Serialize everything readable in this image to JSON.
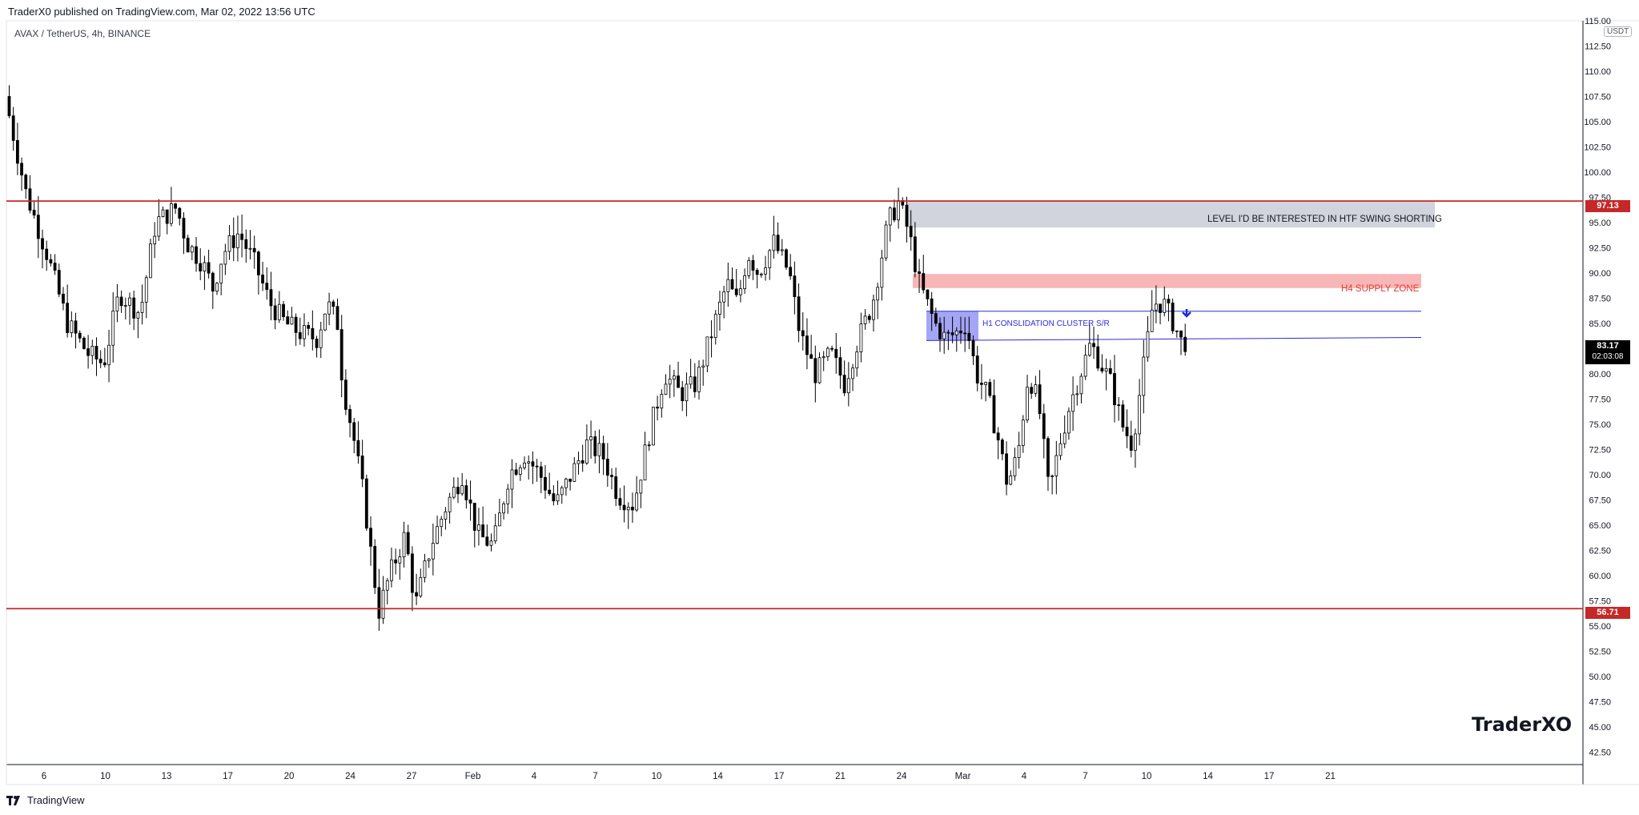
{
  "header": {
    "published": "TraderX0 published on TradingView.com, Mar 02, 2022 13:56 UTC"
  },
  "symbol": {
    "line": "AVAX / TetherUS, 4h, BINANCE"
  },
  "watermark": "TraderXO",
  "footer": {
    "brand": "TradingView"
  },
  "axis_currency": "USDT",
  "price_tags": {
    "resistance": "97.13",
    "support": "56.71",
    "last": "83.17",
    "countdown": "02:03:08"
  },
  "annotations": {
    "htf": "LEVEL I'D BE INTERESTED IN HTF SWING SHORTING",
    "supply": "H4 SUPPLY ZONE",
    "h1": "H1 CONSLIDATION CLUSTER S/R"
  },
  "colors": {
    "line": "#c62828",
    "supply": "#f8a9a9",
    "htf": "#d1d4dc",
    "cluster": "#8e8ff2",
    "arrow": "#1e2bd8"
  },
  "chart_data": {
    "type": "candlestick",
    "title": "AVAX / TetherUS, 4h, BINANCE",
    "ylim": [
      41.25,
      115.0
    ],
    "y_ticks": [
      115.0,
      112.5,
      110.0,
      107.5,
      105.0,
      102.5,
      100.0,
      97.5,
      95.0,
      92.5,
      90.0,
      87.5,
      85.0,
      82.5,
      80.0,
      77.5,
      75.0,
      72.5,
      70.0,
      67.5,
      65.0,
      62.5,
      60.0,
      57.5,
      55.0,
      52.5,
      50.0,
      47.5,
      45.0,
      42.5
    ],
    "x_labels": [
      "6",
      "10",
      "13",
      "17",
      "20",
      "24",
      "27",
      "Feb",
      "4",
      "7",
      "10",
      "14",
      "17",
      "21",
      "24",
      "Mar",
      "4",
      "7",
      "10",
      "14",
      "17",
      "21"
    ],
    "horizontal_levels": [
      97.13,
      56.71
    ],
    "zones": {
      "htf_short": [
        94.5,
        97.13
      ],
      "h4_supply": [
        88.5,
        89.9
      ],
      "h1_cluster": [
        83.3,
        86.2
      ]
    },
    "last_price": 83.17,
    "price_path": [
      [
        0,
        107.5
      ],
      [
        20,
        98
      ],
      [
        40,
        92
      ],
      [
        60,
        85
      ],
      [
        80,
        82
      ],
      [
        95,
        81
      ],
      [
        110,
        88
      ],
      [
        130,
        86
      ],
      [
        145,
        95
      ],
      [
        165,
        96.5
      ],
      [
        175,
        93
      ],
      [
        190,
        91
      ],
      [
        200,
        88.5
      ],
      [
        210,
        92
      ],
      [
        225,
        94
      ],
      [
        240,
        91
      ],
      [
        255,
        87
      ],
      [
        270,
        85
      ],
      [
        285,
        84
      ],
      [
        300,
        83.5
      ],
      [
        310,
        87
      ],
      [
        320,
        85
      ],
      [
        325,
        79
      ],
      [
        335,
        74
      ],
      [
        345,
        68
      ],
      [
        355,
        60
      ],
      [
        360,
        56.5
      ],
      [
        370,
        60
      ],
      [
        385,
        64
      ],
      [
        395,
        57
      ],
      [
        410,
        63
      ],
      [
        425,
        67
      ],
      [
        440,
        70
      ],
      [
        455,
        64
      ],
      [
        470,
        63
      ],
      [
        485,
        70
      ],
      [
        500,
        72
      ],
      [
        515,
        70
      ],
      [
        530,
        67
      ],
      [
        545,
        70
      ],
      [
        560,
        73
      ],
      [
        575,
        72
      ],
      [
        590,
        68
      ],
      [
        605,
        67
      ],
      [
        620,
        74
      ],
      [
        635,
        80
      ],
      [
        650,
        78
      ],
      [
        665,
        79
      ],
      [
        680,
        84
      ],
      [
        695,
        89
      ],
      [
        705,
        87
      ],
      [
        715,
        92
      ],
      [
        725,
        90
      ],
      [
        740,
        93
      ],
      [
        755,
        90
      ],
      [
        765,
        84
      ],
      [
        780,
        80
      ],
      [
        795,
        82
      ],
      [
        808,
        79
      ],
      [
        820,
        83
      ],
      [
        835,
        87
      ],
      [
        850,
        95
      ],
      [
        860,
        97
      ],
      [
        870,
        94
      ],
      [
        880,
        89
      ],
      [
        895,
        85
      ],
      [
        905,
        83.5
      ],
      [
        915,
        84
      ],
      [
        925,
        85
      ],
      [
        935,
        80
      ],
      [
        945,
        78
      ],
      [
        955,
        74
      ],
      [
        965,
        69
      ],
      [
        975,
        72
      ],
      [
        985,
        80
      ],
      [
        995,
        77
      ],
      [
        1005,
        68
      ],
      [
        1015,
        73
      ],
      [
        1025,
        77
      ],
      [
        1035,
        80
      ],
      [
        1045,
        83
      ],
      [
        1055,
        81
      ],
      [
        1065,
        79
      ],
      [
        1075,
        75
      ],
      [
        1085,
        73
      ],
      [
        1095,
        80
      ],
      [
        1105,
        87
      ],
      [
        1115,
        87
      ],
      [
        1125,
        85
      ],
      [
        1132,
        83.2
      ]
    ]
  }
}
